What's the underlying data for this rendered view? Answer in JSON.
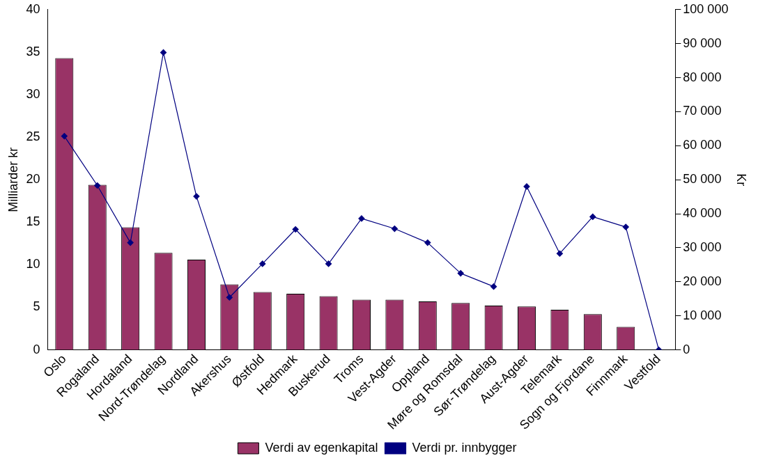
{
  "chart_data": {
    "type": "bar",
    "xlabel": null,
    "ylabel": "Milliarder kr",
    "y2label": "Kr",
    "categories": [
      "Oslo",
      "Rogaland",
      "Hordaland",
      "Nord-Trøndelag",
      "Nordland",
      "Akershus",
      "Østfold",
      "Hedmark",
      "Buskerud",
      "Troms",
      "Vest-Agder",
      "Oppland",
      "Møre og Romsdal",
      "Sør-Trøndelag",
      "Aust-Agder",
      "Telemark",
      "Sogn og Fjordane",
      "Finnmark",
      "Vestfold"
    ],
    "series": [
      {
        "name": "Verdi av egenkapital",
        "color": "#993366",
        "values": [
          34.3,
          19.4,
          14.4,
          11.4,
          10.6,
          7.7,
          6.8,
          6.6,
          6.3,
          5.9,
          5.9,
          5.7,
          5.5,
          5.2,
          5.1,
          4.7,
          4.2,
          2.7,
          null
        ]
      },
      {
        "name": "Verdi pr. innbygger",
        "type": "line",
        "axis": "y2",
        "color": "#000080",
        "marker": "diamond",
        "values": [
          62800,
          48300,
          31500,
          87400,
          45100,
          15400,
          25300,
          35400,
          25300,
          38600,
          35600,
          31500,
          22500,
          18600,
          48000,
          28300,
          39100,
          36100,
          0
        ]
      }
    ],
    "ylim": [
      0,
      40
    ],
    "yticks": [
      0,
      5,
      10,
      15,
      20,
      25,
      30,
      35,
      40
    ],
    "y2lim": [
      0,
      100000
    ],
    "y2ticks": [
      {
        "value": 0,
        "label": "0"
      },
      {
        "value": 10000,
        "label": "10 000"
      },
      {
        "value": 20000,
        "label": "20 000"
      },
      {
        "value": 30000,
        "label": "30 000"
      },
      {
        "value": 40000,
        "label": "40 000"
      },
      {
        "value": 50000,
        "label": "50 000"
      },
      {
        "value": 60000,
        "label": "60 000"
      },
      {
        "value": 70000,
        "label": "70 000"
      },
      {
        "value": 80000,
        "label": "80 000"
      },
      {
        "value": 90000,
        "label": "90 000"
      },
      {
        "value": 100000,
        "label": "100 000"
      }
    ],
    "grid": false,
    "legend": "bottom"
  }
}
